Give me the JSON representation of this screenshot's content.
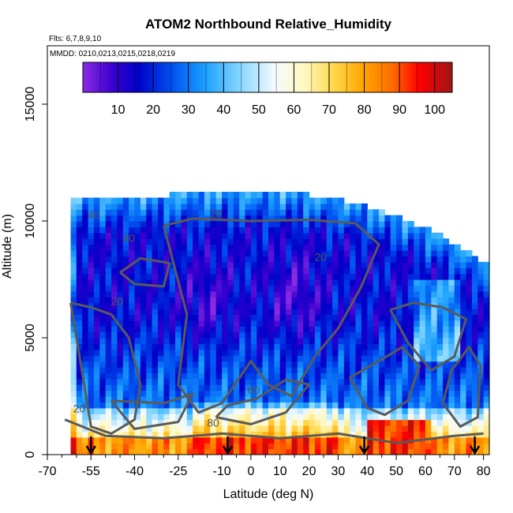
{
  "chart_data": {
    "type": "heatmap",
    "title": "ATOM2 Northbound Relative_Humidity",
    "flights_note": "Flts: 6,7,8,9,10",
    "dates_note": "MMDD: 0210,0213,0215,0218,0219",
    "xlabel": "Latitude (deg N)",
    "ylabel": "Altitude (m)",
    "xlim": [
      -70,
      82
    ],
    "ylim": [
      0,
      17500
    ],
    "x_ticks": [
      -70,
      -55,
      -40,
      -25,
      -10,
      0,
      10,
      20,
      30,
      40,
      50,
      60,
      70,
      80
    ],
    "x_tick_labels": [
      "-70",
      "-55",
      "-40",
      "-25",
      "-10",
      "0",
      "10",
      "20",
      "30",
      "40",
      "50",
      "60",
      "70",
      "80"
    ],
    "y_ticks": [
      0,
      5000,
      10000,
      15000
    ],
    "y_tick_labels": [
      "0",
      "5000",
      "10000",
      "15000"
    ],
    "colorbar": {
      "range": [
        0,
        105
      ],
      "ticks": [
        10,
        20,
        30,
        40,
        50,
        60,
        70,
        80,
        90,
        100
      ],
      "tick_labels": [
        "10",
        "20",
        "30",
        "40",
        "50",
        "60",
        "70",
        "80",
        "90",
        "100"
      ],
      "colors": [
        "#8a2be2",
        "#0000cd",
        "#1e90ff",
        "#ffffff",
        "#ffd700",
        "#ff8c00",
        "#ff0000",
        "#a52a2a"
      ]
    },
    "contour_levels": [
      20,
      40,
      60,
      80
    ],
    "contour_labels": [
      {
        "text": "40",
        "x": -54,
        "y": 10100
      },
      {
        "text": "20",
        "x": -12,
        "y": 10150
      },
      {
        "text": "40",
        "x": -42,
        "y": 9100
      },
      {
        "text": "20",
        "x": -46,
        "y": 6400
      },
      {
        "text": "20",
        "x": 24,
        "y": 8300
      },
      {
        "text": "60",
        "x": 1,
        "y": 2600
      },
      {
        "text": "80",
        "x": -13,
        "y": 1200
      },
      {
        "text": "20",
        "x": -59,
        "y": 1800
      }
    ],
    "flight_arrows_latitude": [
      -55,
      -8,
      39,
      77
    ],
    "gridlines": false,
    "legend": "colorbar at top inside plot"
  }
}
